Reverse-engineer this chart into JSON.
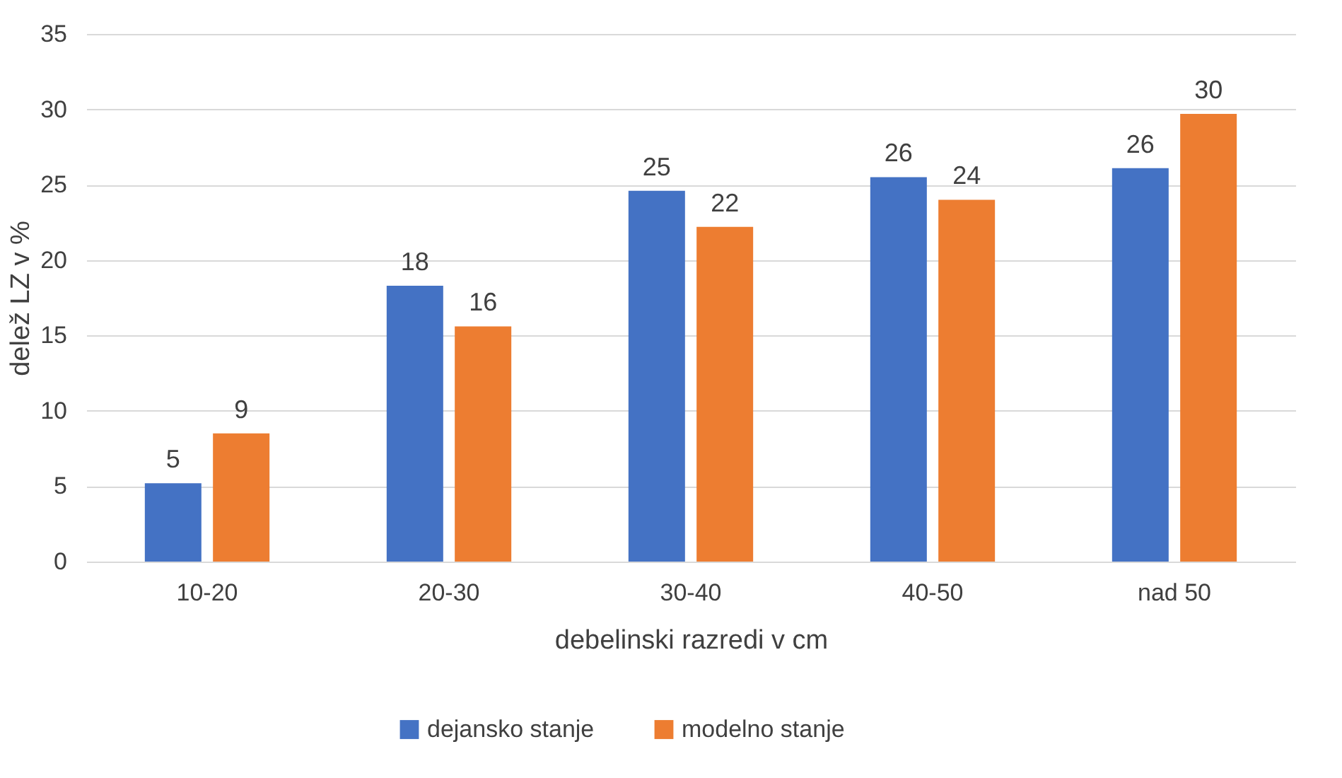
{
  "chart_data": {
    "type": "bar",
    "xlabel": "debelinski razredi v cm",
    "ylabel": "delež LZ v %",
    "categories": [
      "10-20",
      "20-30",
      "30-40",
      "40-50",
      "nad 50"
    ],
    "series": [
      {
        "name": "dejansko stanje",
        "color": "#4472c4",
        "values": [
          5.2,
          18.3,
          24.6,
          25.5,
          26.1
        ],
        "value_labels": [
          "5",
          "18",
          "25",
          "26",
          "26"
        ]
      },
      {
        "name": "modelno stanje",
        "color": "#ed7d31",
        "values": [
          8.5,
          15.6,
          22.2,
          24.0,
          29.7
        ],
        "value_labels": [
          "9",
          "16",
          "22",
          "24",
          "30"
        ]
      }
    ],
    "ylim": [
      0,
      35
    ],
    "yticks": [
      0,
      5,
      10,
      15,
      20,
      25,
      30,
      35
    ],
    "grid": "y",
    "legend": "bottom"
  }
}
